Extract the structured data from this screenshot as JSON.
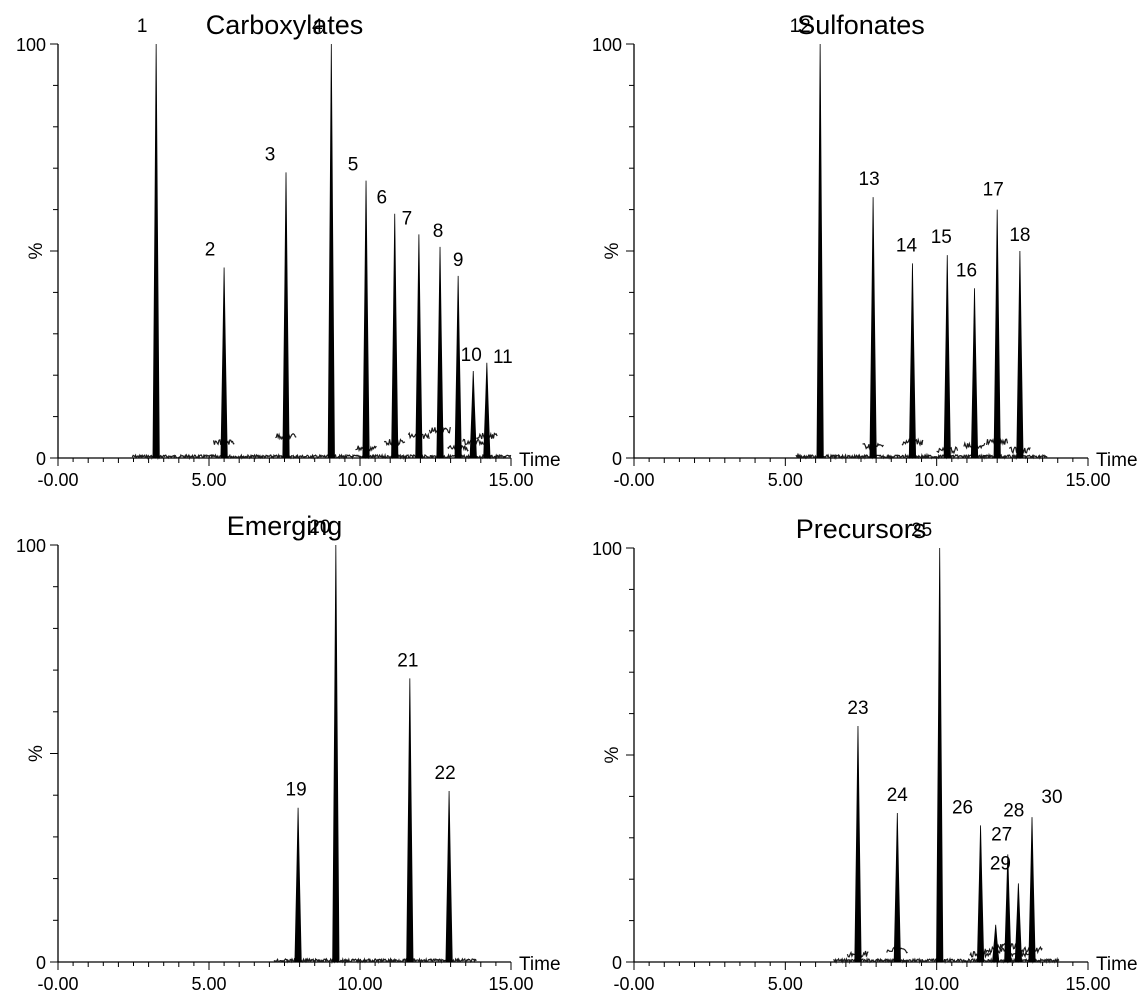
{
  "colors": {
    "ink": "#000000",
    "background": "#ffffff"
  },
  "chart_data": [
    {
      "type": "line",
      "title": "Carboxylates",
      "xlabel": "Time",
      "ylabel": "%",
      "xlim": [
        0,
        15
      ],
      "ylim": [
        0,
        100
      ],
      "x_ticks": [
        "-0.00",
        "5.00",
        "10.00",
        "15.00"
      ],
      "y_ticks": [
        "0",
        "%",
        "100"
      ],
      "peaks": [
        {
          "label": "1",
          "rt": 3.25,
          "height": 100
        },
        {
          "label": "2",
          "rt": 5.5,
          "height": 46
        },
        {
          "label": "3",
          "rt": 7.55,
          "height": 69
        },
        {
          "label": "4",
          "rt": 9.05,
          "height": 100
        },
        {
          "label": "5",
          "rt": 10.2,
          "height": 67
        },
        {
          "label": "6",
          "rt": 11.15,
          "height": 59
        },
        {
          "label": "7",
          "rt": 11.95,
          "height": 54
        },
        {
          "label": "8",
          "rt": 12.65,
          "height": 51
        },
        {
          "label": "9",
          "rt": 13.25,
          "height": 44
        },
        {
          "label": "10",
          "rt": 13.75,
          "height": 21
        },
        {
          "label": "11",
          "rt": 14.2,
          "height": 23
        }
      ]
    },
    {
      "type": "line",
      "title": "Sulfonates",
      "xlabel": "Time",
      "ylabel": "%",
      "xlim": [
        0,
        15
      ],
      "ylim": [
        0,
        100
      ],
      "x_ticks": [
        "-0.00",
        "5.00",
        "10.00",
        "15.00"
      ],
      "y_ticks": [
        "0",
        "%",
        "100"
      ],
      "peaks": [
        {
          "label": "12",
          "rt": 6.15,
          "height": 100
        },
        {
          "label": "13",
          "rt": 7.9,
          "height": 63
        },
        {
          "label": "14",
          "rt": 9.2,
          "height": 47
        },
        {
          "label": "15",
          "rt": 10.35,
          "height": 49
        },
        {
          "label": "16",
          "rt": 11.25,
          "height": 41
        },
        {
          "label": "17",
          "rt": 12.0,
          "height": 60
        },
        {
          "label": "18",
          "rt": 12.75,
          "height": 50
        }
      ]
    },
    {
      "type": "line",
      "title": "Emerging",
      "xlabel": "Time",
      "ylabel": "%",
      "xlim": [
        0,
        15
      ],
      "ylim": [
        0,
        100
      ],
      "x_ticks": [
        "-0.00",
        "5.00",
        "10.00",
        "15.00"
      ],
      "y_ticks": [
        "0",
        "%",
        "100"
      ],
      "peaks": [
        {
          "label": "19",
          "rt": 7.95,
          "height": 37
        },
        {
          "label": "20",
          "rt": 9.2,
          "height": 100
        },
        {
          "label": "21",
          "rt": 11.65,
          "height": 68
        },
        {
          "label": "22",
          "rt": 12.95,
          "height": 41
        }
      ]
    },
    {
      "type": "line",
      "title": "Precursors",
      "xlabel": "Time",
      "ylabel": "%",
      "xlim": [
        0,
        15
      ],
      "ylim": [
        0,
        100
      ],
      "x_ticks": [
        "-0.00",
        "5.00",
        "10.00",
        "15.00"
      ],
      "y_ticks": [
        "0",
        "%",
        "100"
      ],
      "peaks": [
        {
          "label": "23",
          "rt": 7.4,
          "height": 57
        },
        {
          "label": "24",
          "rt": 8.7,
          "height": 36
        },
        {
          "label": "25",
          "rt": 10.1,
          "height": 100
        },
        {
          "label": "26",
          "rt": 11.45,
          "height": 33
        },
        {
          "label": "27",
          "rt": 11.95,
          "height": 9
        },
        {
          "label": "28",
          "rt": 12.35,
          "height": 26
        },
        {
          "label": "29",
          "rt": 12.7,
          "height": 19
        },
        {
          "label": "30",
          "rt": 13.15,
          "height": 35
        }
      ]
    }
  ]
}
